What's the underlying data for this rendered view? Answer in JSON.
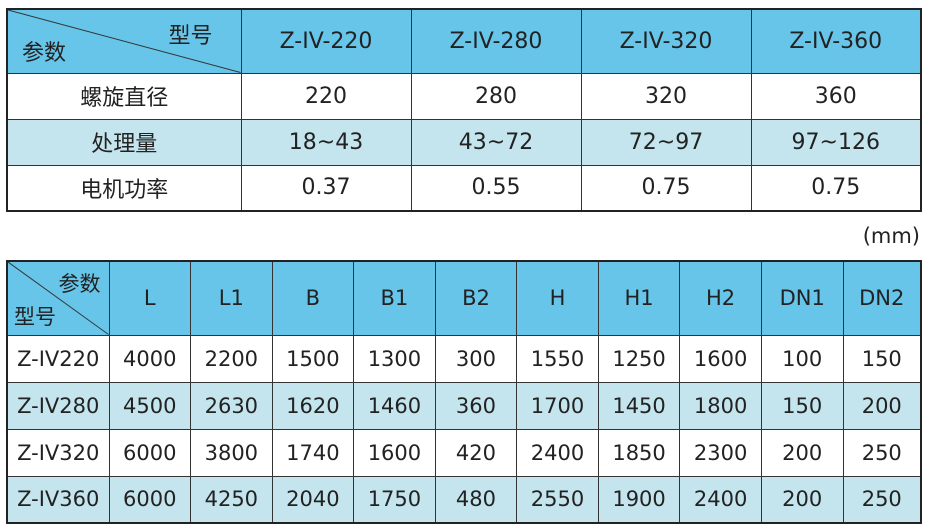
{
  "table1": {
    "corner_top": "型号",
    "corner_bottom": "参数",
    "models": [
      "Z-IV-220",
      "Z-IV-280",
      "Z-IV-320",
      "Z-IV-360"
    ],
    "rows": [
      {
        "label": "螺旋直径",
        "values": [
          "220",
          "280",
          "320",
          "360"
        ]
      },
      {
        "label": "处理量",
        "values": [
          "18~43",
          "43~72",
          "72~97",
          "97~126"
        ]
      },
      {
        "label": "电机功率",
        "values": [
          "0.37",
          "0.55",
          "0.75",
          "0.75"
        ]
      }
    ]
  },
  "unit": "(mm)",
  "table2": {
    "corner_top": "参数",
    "corner_bottom": "型号",
    "columns": [
      "L",
      "L1",
      "B",
      "B1",
      "B2",
      "H",
      "H1",
      "H2",
      "DN1",
      "DN2"
    ],
    "rows": [
      {
        "model": "Z-IV220",
        "values": [
          "4000",
          "2200",
          "1500",
          "1300",
          "300",
          "1550",
          "1250",
          "1600",
          "100",
          "150"
        ]
      },
      {
        "model": "Z-IV280",
        "values": [
          "4500",
          "2630",
          "1620",
          "1460",
          "360",
          "1700",
          "1450",
          "1800",
          "150",
          "200"
        ]
      },
      {
        "model": "Z-IV320",
        "values": [
          "6000",
          "3800",
          "1740",
          "1600",
          "420",
          "2400",
          "1850",
          "2300",
          "200",
          "250"
        ]
      },
      {
        "model": "Z-IV360",
        "values": [
          "6000",
          "4250",
          "2040",
          "1750",
          "480",
          "2550",
          "1900",
          "2400",
          "200",
          "250"
        ]
      }
    ]
  },
  "colors": {
    "header": "#66c5e8",
    "alt_row": "#c4e5ee"
  }
}
